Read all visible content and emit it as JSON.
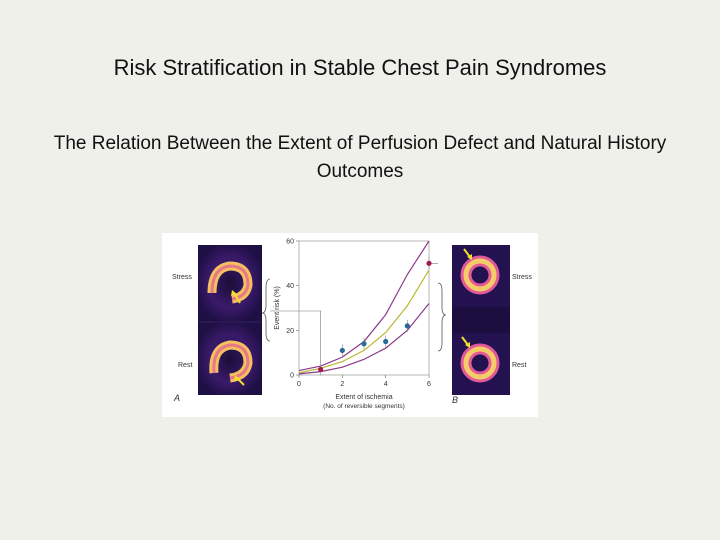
{
  "slide": {
    "title": "Risk Stratification in Stable Chest Pain Syndromes",
    "subtitle": "The Relation Between the Extent of Perfusion Defect and Natural History Outcomes"
  },
  "figure": {
    "panel_a_label": "A",
    "panel_b_label": "B",
    "stress_label": "Stress",
    "rest_label": "Rest"
  },
  "chart_data": {
    "type": "scatter",
    "xlabel": "Extent of ischemia",
    "xlabel_sub": "(No. of reversible segments)",
    "ylabel": "Event risk (%)",
    "xlim": [
      0,
      6
    ],
    "ylim": [
      0,
      60
    ],
    "x_ticks": [
      "0",
      "2",
      "4",
      "6"
    ],
    "y_ticks": [
      "0",
      "20",
      "40",
      "60"
    ],
    "grid": false,
    "series": [
      {
        "values": [
          [
            1,
            2.5
          ],
          [
            6,
            50
          ]
        ],
        "color": "#a01a4a"
      },
      {
        "values": [
          [
            2,
            11
          ],
          [
            3,
            14
          ],
          [
            4,
            15
          ],
          [
            5,
            22
          ]
        ],
        "color": "#2a6a9a"
      }
    ],
    "curves": [
      {
        "color": "#8a3a8a",
        "values": [
          [
            0,
            2
          ],
          [
            1,
            4
          ],
          [
            2,
            8
          ],
          [
            3,
            15
          ],
          [
            4,
            27
          ],
          [
            5,
            45
          ],
          [
            6,
            62
          ]
        ]
      },
      {
        "color": "#b8b830",
        "values": [
          [
            0,
            1
          ],
          [
            1,
            3
          ],
          [
            2,
            6
          ],
          [
            3,
            11
          ],
          [
            4,
            19
          ],
          [
            5,
            31
          ],
          [
            6,
            47
          ]
        ]
      },
      {
        "color": "#8a3a8a",
        "values": [
          [
            0,
            0.5
          ],
          [
            1,
            1.5
          ],
          [
            2,
            3.5
          ],
          [
            3,
            7
          ],
          [
            4,
            12
          ],
          [
            5,
            20
          ],
          [
            6,
            32
          ]
        ]
      }
    ]
  }
}
